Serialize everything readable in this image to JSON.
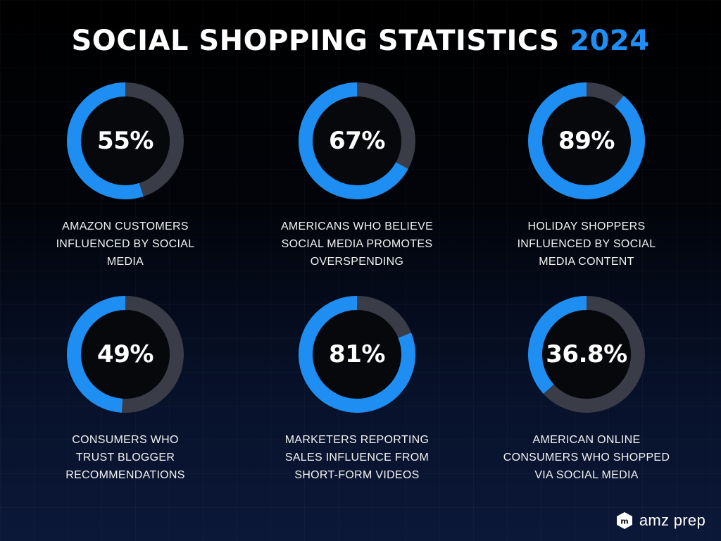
{
  "title": {
    "main": "SOCIAL SHOPPING STATISTICS",
    "year": "2024"
  },
  "colors": {
    "accent": "#1e8ef3",
    "track": "#3a3d47",
    "background": "#000000"
  },
  "chart_data": {
    "type": "pie",
    "title": "SOCIAL SHOPPING STATISTICS 2024",
    "stats": [
      {
        "value": 55,
        "label": "55%",
        "caption": "AMAZON CUSTOMERS INFLUENCED BY SOCIAL MEDIA"
      },
      {
        "value": 67,
        "label": "67%",
        "caption": "AMERICANS WHO BELIEVE SOCIAL MEDIA PROMOTES OVERSPENDING"
      },
      {
        "value": 89,
        "label": "89%",
        "caption": "HOLIDAY SHOPPERS INFLUENCED BY SOCIAL MEDIA CONTENT"
      },
      {
        "value": 49,
        "label": "49%",
        "caption": "CONSUMERS WHO TRUST BLOGGER RECOMMENDATIONS"
      },
      {
        "value": 81,
        "label": "81%",
        "caption": "MARKETERS REPORTING SALES INFLUENCE FROM SHORT-FORM VIDEOS"
      },
      {
        "value": 36.8,
        "label": "36.8%",
        "caption": "AMERICAN ONLINE CONSUMERS WHO SHOPPED VIA SOCIAL MEDIA"
      }
    ]
  },
  "brand": {
    "name": "amz prep",
    "icon": "amz-prep-logo-icon"
  }
}
